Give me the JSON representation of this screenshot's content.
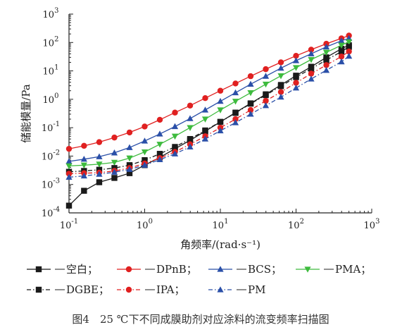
{
  "chart_data": {
    "type": "line",
    "title": "",
    "caption": "图4　25 ℃下不同成膜助剂对应涂料的流变频率扫描图",
    "xlabel": "角频率/(rad·s⁻¹)",
    "ylabel": "储能模量/Pa",
    "xscale": "log",
    "yscale": "log",
    "xlim": [
      0.1,
      1000
    ],
    "ylim": [
      0.0001,
      1000
    ],
    "x_ticks": [
      {
        "value": 0.1,
        "base": "10",
        "exp": "-1"
      },
      {
        "value": 1,
        "base": "10",
        "exp": "0"
      },
      {
        "value": 10,
        "base": "10",
        "exp": "1"
      },
      {
        "value": 100,
        "base": "10",
        "exp": "2"
      },
      {
        "value": 1000,
        "base": "10",
        "exp": "3"
      }
    ],
    "y_ticks": [
      {
        "value": 0.0001,
        "base": "10",
        "exp": "-4"
      },
      {
        "value": 0.001,
        "base": "10",
        "exp": "-3"
      },
      {
        "value": 0.01,
        "base": "10",
        "exp": "-2"
      },
      {
        "value": 0.1,
        "base": "10",
        "exp": "-1"
      },
      {
        "value": 1,
        "base": "10",
        "exp": "0"
      },
      {
        "value": 10,
        "base": "10",
        "exp": "1"
      },
      {
        "value": 100,
        "base": "10",
        "exp": "2"
      },
      {
        "value": 1000,
        "base": "10",
        "exp": "3"
      }
    ],
    "grid": false,
    "legend_position": "bottom",
    "series": [
      {
        "name": "空白",
        "color": "#1a1a1a",
        "marker": "square",
        "dash": "solid",
        "x": [
          0.1,
          0.158,
          0.251,
          0.398,
          0.631,
          1,
          1.585,
          2.512,
          3.981,
          6.31,
          10,
          15.85,
          25.12,
          39.81,
          63.1,
          100,
          158.5,
          251.2,
          398.1,
          500
        ],
        "y": [
          0.00018,
          0.0006,
          0.0012,
          0.0017,
          0.0025,
          0.0048,
          0.009,
          0.018,
          0.036,
          0.075,
          0.16,
          0.34,
          0.72,
          1.5,
          3.2,
          6.8,
          14,
          30,
          60,
          80
        ]
      },
      {
        "name": "DPnB",
        "color": "#e02020",
        "marker": "circle",
        "dash": "solid",
        "x": [
          0.1,
          0.158,
          0.251,
          0.398,
          0.631,
          1,
          1.585,
          2.512,
          3.981,
          6.31,
          10,
          15.85,
          25.12,
          39.81,
          63.1,
          100,
          158.5,
          251.2,
          398.1,
          500
        ],
        "y": [
          0.018,
          0.023,
          0.031,
          0.045,
          0.068,
          0.11,
          0.19,
          0.34,
          0.6,
          1.1,
          2.0,
          3.6,
          6.5,
          11.5,
          20,
          34,
          56,
          90,
          140,
          175
        ]
      },
      {
        "name": "BCS",
        "color": "#2a4fa8",
        "marker": "triangle-up",
        "dash": "solid",
        "x": [
          0.1,
          0.158,
          0.251,
          0.398,
          0.631,
          1,
          1.585,
          2.512,
          3.981,
          6.31,
          10,
          15.85,
          25.12,
          39.81,
          63.1,
          100,
          158.5,
          251.2,
          398.1,
          500
        ],
        "y": [
          0.0065,
          0.0078,
          0.0095,
          0.013,
          0.02,
          0.034,
          0.06,
          0.11,
          0.21,
          0.42,
          0.85,
          1.7,
          3.4,
          6.5,
          12.5,
          23,
          40,
          70,
          115,
          140
        ]
      },
      {
        "name": "PMA",
        "color": "#3dbb3d",
        "marker": "triangle-down",
        "dash": "solid",
        "x": [
          0.1,
          0.158,
          0.251,
          0.398,
          0.631,
          1,
          1.585,
          2.512,
          3.981,
          6.31,
          10,
          15.85,
          25.12,
          39.81,
          63.1,
          100,
          158.5,
          251.2,
          398.1,
          500
        ],
        "y": [
          0.0045,
          0.0048,
          0.0052,
          0.006,
          0.0085,
          0.014,
          0.026,
          0.05,
          0.1,
          0.2,
          0.42,
          0.85,
          1.7,
          3.4,
          6.7,
          13,
          25,
          45,
          80,
          105
        ]
      },
      {
        "name": "DGBE",
        "color": "#1a1a1a",
        "marker": "square",
        "dash": "dashdot",
        "x": [
          0.1,
          0.158,
          0.251,
          0.398,
          0.631,
          1,
          1.585,
          2.512,
          3.981,
          6.31,
          10,
          15.85,
          25.12,
          39.81,
          63.1,
          100,
          158.5,
          251.2,
          398.1,
          500
        ],
        "y": [
          0.0028,
          0.003,
          0.0033,
          0.0038,
          0.0048,
          0.0072,
          0.012,
          0.021,
          0.04,
          0.08,
          0.16,
          0.33,
          0.7,
          1.4,
          2.9,
          6.0,
          12,
          24,
          48,
          70
        ]
      },
      {
        "name": "IPA",
        "color": "#e02020",
        "marker": "circle",
        "dash": "dashdot",
        "x": [
          0.1,
          0.158,
          0.251,
          0.398,
          0.631,
          1,
          1.585,
          2.512,
          3.981,
          6.31,
          10,
          15.85,
          25.12,
          39.81,
          63.1,
          100,
          158.5,
          251.2,
          398.1,
          500
        ],
        "y": [
          0.0024,
          0.0025,
          0.0026,
          0.003,
          0.0038,
          0.0055,
          0.0085,
          0.014,
          0.026,
          0.05,
          0.1,
          0.2,
          0.42,
          0.88,
          1.8,
          3.8,
          8.0,
          16,
          32,
          48
        ]
      },
      {
        "name": "PM",
        "color": "#2a4fa8",
        "marker": "triangle-up",
        "dash": "dashdot",
        "x": [
          0.1,
          0.158,
          0.251,
          0.398,
          0.631,
          1,
          1.585,
          2.512,
          3.981,
          6.31,
          10,
          15.85,
          25.12,
          39.81,
          63.1,
          100,
          158.5,
          251.2,
          398.1,
          500
        ],
        "y": [
          0.0018,
          0.002,
          0.0023,
          0.0027,
          0.0034,
          0.0048,
          0.0075,
          0.012,
          0.021,
          0.04,
          0.078,
          0.15,
          0.3,
          0.6,
          1.2,
          2.5,
          5.2,
          10.5,
          21,
          33
        ]
      }
    ]
  }
}
